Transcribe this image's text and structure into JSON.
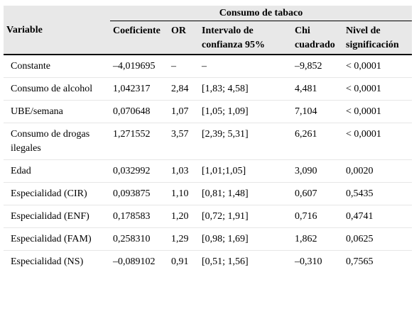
{
  "table": {
    "group_header": "Consumo de tabaco",
    "columns": [
      "Variable",
      "Coeficiente",
      "OR",
      "Intervalo de confianza 95%",
      "Chi cuadrado",
      "Nivel de significación"
    ],
    "rows": [
      [
        "Constante",
        "–4,019695",
        "–",
        "–",
        "–9,852",
        "< 0,0001"
      ],
      [
        "Consumo de alcohol",
        "1,042317",
        "2,84",
        "[1,83; 4,58]",
        "4,481",
        "< 0,0001"
      ],
      [
        "UBE/semana",
        "0,070648",
        "1,07",
        "[1,05; 1,09]",
        "7,104",
        "< 0,0001"
      ],
      [
        "Consumo de drogas ilegales",
        "1,271552",
        "3,57",
        "[2,39; 5,31]",
        "6,261",
        "< 0,0001"
      ],
      [
        "Edad",
        "0,032992",
        "1,03",
        "[1,01;1,05]",
        "3,090",
        "0,0020"
      ],
      [
        "Especialidad (CIR)",
        "0,093875",
        "1,10",
        "[0,81; 1,48]",
        "0,607",
        "0,5435"
      ],
      [
        "Especialidad (ENF)",
        "0,178583",
        "1,20",
        "[0,72; 1,91]",
        "0,716",
        "0,4741"
      ],
      [
        "Especialidad (FAM)",
        "0,258310",
        "1,29",
        "[0,98; 1,69]",
        "1,862",
        "0,0625"
      ],
      [
        "Especialidad (NS)",
        "–0,089102",
        "0,91",
        "[0,51; 1,56]",
        "–0,310",
        "0,7565"
      ]
    ]
  }
}
